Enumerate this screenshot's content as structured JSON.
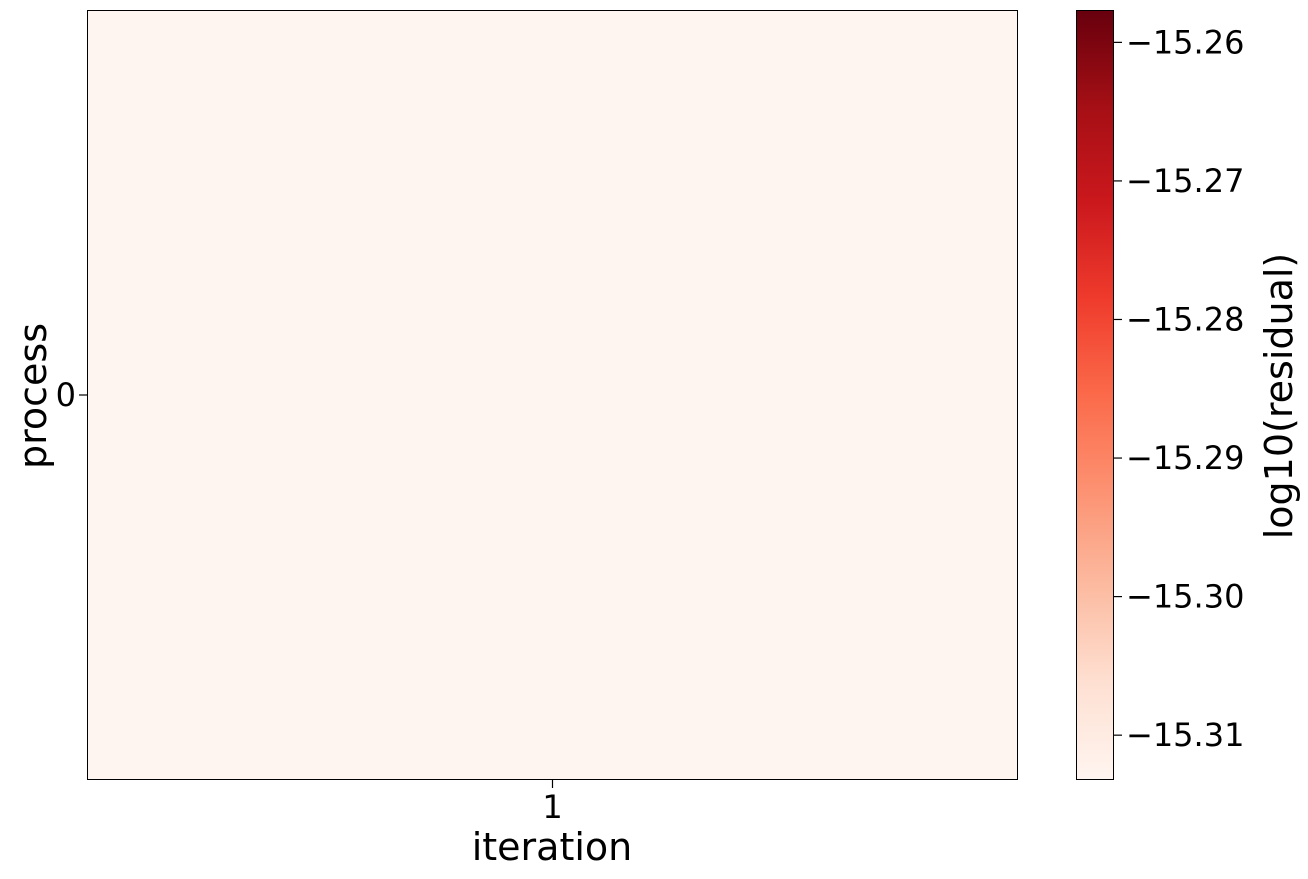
{
  "chart_data": {
    "type": "heatmap",
    "title": "",
    "xlabel": "iteration",
    "ylabel": "process",
    "x_categories": [
      "1"
    ],
    "y_categories": [
      "0"
    ],
    "values": [
      [
        -15.3132
      ]
    ],
    "colorbar": {
      "label": "log10(residual)",
      "range": [
        -15.3132,
        -15.2577
      ],
      "ticks": [
        -15.31,
        -15.3,
        -15.29,
        -15.28,
        -15.27,
        -15.26
      ],
      "tick_labels": [
        "−15.31",
        "−15.30",
        "−15.29",
        "−15.28",
        "−15.27",
        "−15.26"
      ],
      "colormap": "Reds",
      "color_low": "#fff5f0",
      "color_high": "#67000d"
    },
    "grid": false
  }
}
